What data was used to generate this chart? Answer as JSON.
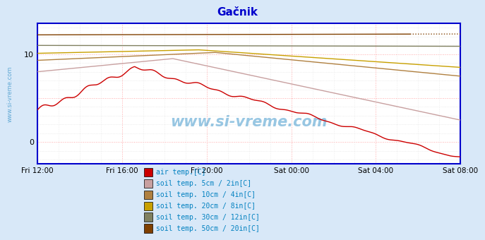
{
  "title": "Gačnik",
  "title_color": "#0000cc",
  "background_color": "#d8e8f8",
  "plot_bg_color": "#ffffff",
  "grid_color_major": "#ffaaaa",
  "grid_color_minor": "#e0e0e0",
  "x_ticks": [
    "Fri 12:00",
    "Fri 16:00",
    "Fri 20:00",
    "Sat 00:00",
    "Sat 04:00",
    "Sat 08:00"
  ],
  "ylim": [
    -2.5,
    13.5
  ],
  "yticks": [
    0,
    10
  ],
  "watermark": "www.si-vreme.com",
  "watermark_color": "#4499cc",
  "axis_color": "#0000cc",
  "side_label_color": "#4499cc",
  "series": {
    "air_temp": {
      "color": "#cc0000",
      "label": "air temp.[C]"
    },
    "soil_5cm": {
      "color": "#c8a0a0",
      "label": "soil temp. 5cm / 2in[C]"
    },
    "soil_10cm": {
      "color": "#b08040",
      "label": "soil temp. 10cm / 4in[C]"
    },
    "soil_20cm": {
      "color": "#c8a000",
      "label": "soil temp. 20cm / 8in[C]"
    },
    "soil_30cm": {
      "color": "#808060",
      "label": "soil temp. 30cm / 12in[C]"
    },
    "soil_50cm": {
      "color": "#804000",
      "label": "soil temp. 50cm / 20in[C]"
    }
  },
  "legend_text_color": "#0080c0"
}
